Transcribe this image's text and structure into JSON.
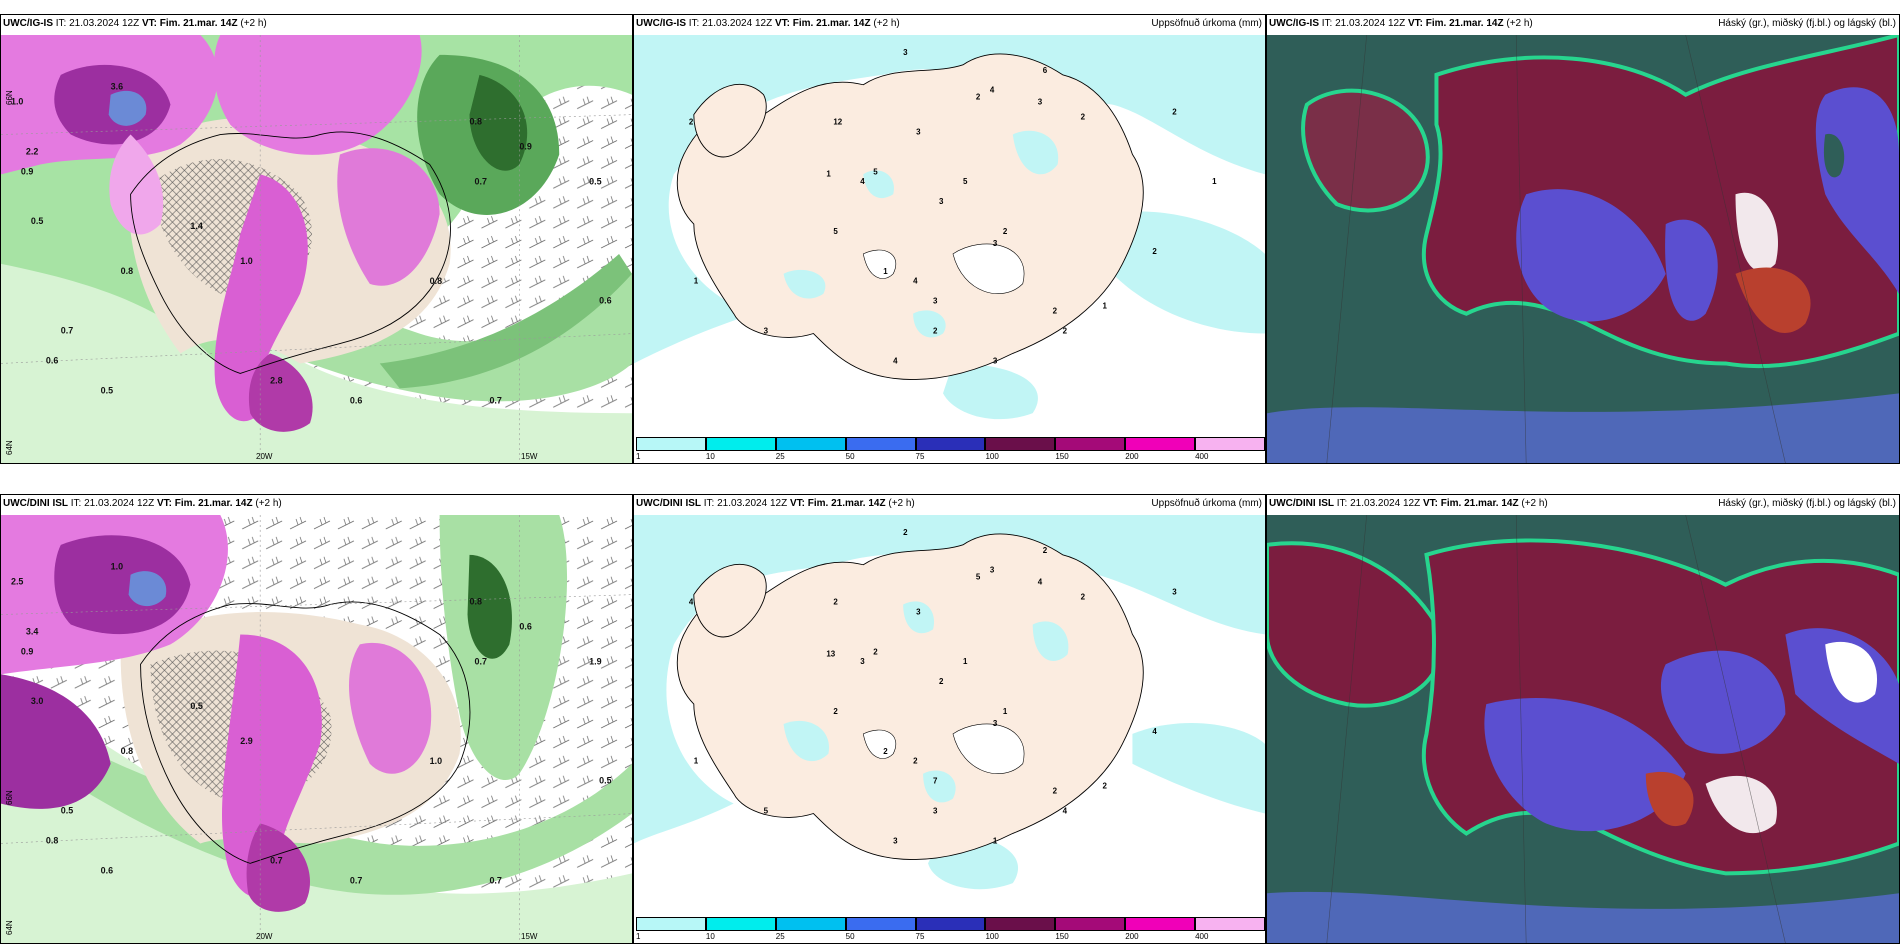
{
  "rows": [
    {
      "panels": [
        {
          "model": "UWC/IG-IS",
          "it_label": "IT:",
          "it": "21.03.2024 12Z",
          "vt_label": "VT:",
          "vt": "Fim. 21.mar. 14Z",
          "lead": "(+2 h)",
          "right_title": ""
        },
        {
          "model": "UWC/IG-IS",
          "it_label": "IT:",
          "it": "21.03.2024 12Z",
          "vt_label": "VT:",
          "vt": "Fim. 21.mar. 14Z",
          "lead": "(+2 h)",
          "right_title": "Uppsöfnuð úrkoma (mm)"
        },
        {
          "model": "UWC/IG-IS",
          "it_label": "IT:",
          "it": "21.03.2024 12Z",
          "vt_label": "VT:",
          "vt": "Fim. 21.mar. 14Z",
          "lead": "(+2 h)",
          "right_title": "Háský (gr.), miðský (fj.bl.) og lágský (bl.)"
        }
      ]
    },
    {
      "panels": [
        {
          "model": "UWC/DINI ISL",
          "it_label": "IT:",
          "it": "21.03.2024 12Z",
          "vt_label": "VT:",
          "vt": "Fim. 21.mar. 14Z",
          "lead": "(+2 h)",
          "right_title": ""
        },
        {
          "model": "UWC/DINI ISL",
          "it_label": "IT:",
          "it": "21.03.2024 12Z",
          "vt_label": "VT:",
          "vt": "Fim. 21.mar. 14Z",
          "lead": "(+2 h)",
          "right_title": "Uppsöfnuð úrkoma (mm)"
        },
        {
          "model": "UWC/DINI ISL",
          "it_label": "IT:",
          "it": "21.03.2024 12Z",
          "vt_label": "VT:",
          "vt": "Fim. 21.mar. 14Z",
          "lead": "(+2 h)",
          "right_title": "Háský (gr.), miðský (fj.bl.) og lágský (bl.)"
        }
      ]
    }
  ],
  "axis_labels": {
    "lon_20w": "20W",
    "lon_15w": "15W",
    "lat_66n": "66N",
    "lat_64n": "64N"
  },
  "legend": {
    "colors": [
      "#b7f7f7",
      "#00eded",
      "#00c0f0",
      "#3a6cf0",
      "#2a2fb8",
      "#6a0f4a",
      "#a40a78",
      "#f000b8",
      "#f7b2f0"
    ],
    "ticks": [
      "1",
      "10",
      "25",
      "50",
      "75",
      "100",
      "150",
      "200",
      "400"
    ]
  },
  "precip_top_values": [
    "3",
    "4",
    "2",
    "6",
    "1",
    "2",
    "3",
    "2",
    "12",
    "3",
    "4",
    "5",
    "5",
    "3",
    "3",
    "2",
    "2",
    "1",
    "4",
    "2",
    "1",
    "3",
    "3",
    "2",
    "4",
    "5",
    "2",
    "1",
    "3",
    "2",
    "1"
  ],
  "precip_bottom_values": [
    "2",
    "3",
    "4",
    "2",
    "13",
    "2",
    "3",
    "5",
    "2",
    "4",
    "3",
    "2",
    "1",
    "2",
    "3",
    "4",
    "2",
    "1",
    "2",
    "3",
    "2",
    "5",
    "1",
    "4",
    "3",
    "2",
    "1",
    "2",
    "7",
    "3"
  ],
  "wind_top_values": [
    "3.6",
    "1.0",
    "2.2",
    "0.9",
    "0.5",
    "0.8",
    "1.4",
    "0.7",
    "0.5",
    "1.0",
    "2.8",
    "0.6",
    "0.8",
    "0.7",
    "0.9",
    "0.5",
    "0.7",
    "0.6",
    "0.8",
    "0.6"
  ],
  "wind_bottom_values": [
    "1.0",
    "2.5",
    "3.4",
    "0.9",
    "3.0",
    "0.8",
    "0.5",
    "0.7",
    "0.6",
    "2.9",
    "0.7",
    "0.5",
    "0.8",
    "0.7",
    "0.6",
    "1.9",
    "0.5",
    "0.8",
    "1.0",
    "0.7"
  ]
}
